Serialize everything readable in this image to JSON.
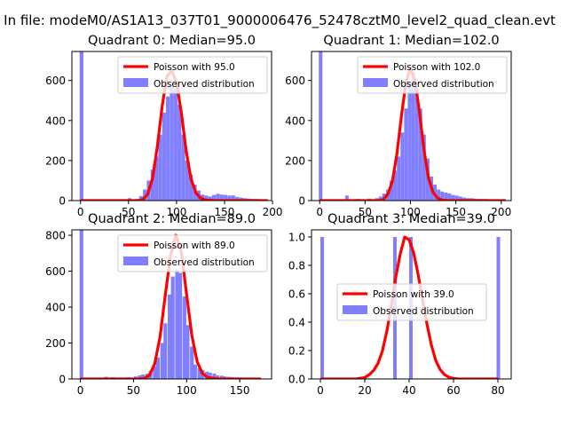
{
  "figure": {
    "suptitle": "In file: modeM0/AS1A13_037T01_9000006476_52478cztM0_level2_quad_clean.evt"
  },
  "colors": {
    "observed": "#7f7fff",
    "poisson": "#ff0000",
    "axis": "#000000"
  },
  "chart_data": [
    {
      "type": "bar",
      "title": "Quadrant 0: Median=95.0",
      "xlim": [
        -9,
        199
      ],
      "ylim": [
        0,
        745
      ],
      "xticks": [
        0,
        50,
        100,
        150,
        200
      ],
      "yticks": [
        0,
        200,
        400,
        600
      ],
      "legend_position": "top-right",
      "bin_width": 3.9,
      "series": [
        {
          "name": "Observed distribution",
          "type": "bar",
          "points": [
            [
              1,
              745
            ],
            [
              51,
              12
            ],
            [
              59,
              8
            ],
            [
              63,
              22
            ],
            [
              67,
              55
            ],
            [
              71,
              100
            ],
            [
              75,
              155
            ],
            [
              79,
              220
            ],
            [
              83,
              330
            ],
            [
              87,
              440
            ],
            [
              91,
              520
            ],
            [
              95,
              600
            ],
            [
              99,
              560
            ],
            [
              103,
              480
            ],
            [
              107,
              330
            ],
            [
              111,
              200
            ],
            [
              115,
              130
            ],
            [
              119,
              80
            ],
            [
              123,
              50
            ],
            [
              127,
              30
            ],
            [
              131,
              25
            ],
            [
              135,
              20
            ],
            [
              139,
              28
            ],
            [
              143,
              34
            ],
            [
              147,
              30
            ],
            [
              151,
              28
            ],
            [
              155,
              25
            ],
            [
              159,
              26
            ],
            [
              163,
              18
            ],
            [
              167,
              15
            ],
            [
              171,
              12
            ],
            [
              175,
              10
            ],
            [
              179,
              8
            ],
            [
              183,
              8
            ]
          ]
        },
        {
          "name": "Poisson with 95.0",
          "type": "line",
          "x": [
            0,
            55,
            60,
            65,
            70,
            75,
            80,
            85,
            90,
            95,
            100,
            105,
            110,
            115,
            120,
            125,
            130,
            140,
            150,
            160,
            170,
            180,
            190,
            195
          ],
          "y": [
            0,
            0,
            0,
            6,
            32,
            110,
            270,
            470,
            620,
            650,
            590,
            440,
            250,
            110,
            40,
            12,
            3,
            0,
            0,
            0,
            0,
            0,
            0,
            0
          ]
        }
      ]
    },
    {
      "type": "bar",
      "title": "Quadrant 1: Median=102.0",
      "xlim": [
        -9,
        211
      ],
      "ylim": [
        0,
        745
      ],
      "xticks": [
        0,
        50,
        100,
        150,
        200
      ],
      "yticks": [
        0,
        200,
        400,
        600
      ],
      "legend_position": "top-right",
      "bin_width": 3.9,
      "series": [
        {
          "name": "Observed distribution",
          "type": "bar",
          "points": [
            [
              1,
              745
            ],
            [
              30,
              25
            ],
            [
              42,
              8
            ],
            [
              55,
              10
            ],
            [
              63,
              12
            ],
            [
              67,
              20
            ],
            [
              71,
              35
            ],
            [
              75,
              55
            ],
            [
              79,
              100
            ],
            [
              83,
              150
            ],
            [
              87,
              220
            ],
            [
              91,
              340
            ],
            [
              95,
              460
            ],
            [
              99,
              590
            ],
            [
              103,
              640
            ],
            [
              107,
              560
            ],
            [
              111,
              460
            ],
            [
              115,
              330
            ],
            [
              119,
              210
            ],
            [
              123,
              120
            ],
            [
              127,
              80
            ],
            [
              131,
              55
            ],
            [
              135,
              45
            ],
            [
              139,
              40
            ],
            [
              143,
              35
            ],
            [
              147,
              28
            ],
            [
              151,
              25
            ],
            [
              155,
              20
            ],
            [
              159,
              15
            ],
            [
              163,
              12
            ],
            [
              167,
              12
            ],
            [
              171,
              10
            ],
            [
              175,
              8
            ],
            [
              179,
              8
            ],
            [
              183,
              8
            ]
          ]
        },
        {
          "name": "Poisson with 102.0",
          "type": "line",
          "x": [
            0,
            60,
            65,
            70,
            75,
            80,
            85,
            90,
            95,
            100,
            105,
            110,
            115,
            120,
            125,
            130,
            135,
            140,
            150,
            160,
            180,
            200,
            205
          ],
          "y": [
            0,
            0,
            0,
            5,
            30,
            95,
            230,
            420,
            590,
            660,
            600,
            440,
            250,
            110,
            40,
            12,
            3,
            0,
            0,
            0,
            0,
            0,
            0
          ]
        }
      ]
    },
    {
      "type": "bar",
      "title": "Quadrant 2: Median=89.0",
      "xlim": [
        -8,
        180
      ],
      "ylim": [
        0,
        830
      ],
      "xticks": [
        0,
        50,
        100,
        150
      ],
      "yticks": [
        0,
        200,
        400,
        600,
        800
      ],
      "legend_position": "top-right",
      "bin_width": 3.5,
      "series": [
        {
          "name": "Observed distribution",
          "type": "bar",
          "points": [
            [
              1,
              830
            ],
            [
              24,
              12
            ],
            [
              31,
              10
            ],
            [
              38,
              8
            ],
            [
              45,
              10
            ],
            [
              52,
              14
            ],
            [
              56,
              20
            ],
            [
              59,
              25
            ],
            [
              63,
              30
            ],
            [
              66,
              45
            ],
            [
              70,
              70
            ],
            [
              73,
              120
            ],
            [
              77,
              200
            ],
            [
              80,
              310
            ],
            [
              84,
              470
            ],
            [
              87,
              570
            ],
            [
              91,
              610
            ],
            [
              94,
              590
            ],
            [
              98,
              460
            ],
            [
              101,
              300
            ],
            [
              105,
              180
            ],
            [
              108,
              80
            ],
            [
              112,
              60
            ],
            [
              115,
              50
            ],
            [
              119,
              40
            ],
            [
              122,
              35
            ],
            [
              126,
              30
            ],
            [
              129,
              20
            ],
            [
              133,
              18
            ],
            [
              136,
              14
            ],
            [
              140,
              12
            ],
            [
              143,
              10
            ],
            [
              147,
              8
            ],
            [
              150,
              8
            ]
          ]
        },
        {
          "name": "Poisson with 89.0",
          "type": "line",
          "x": [
            0,
            55,
            60,
            65,
            70,
            75,
            80,
            85,
            90,
            95,
            100,
            105,
            110,
            115,
            120,
            130,
            140,
            150,
            160,
            170
          ],
          "y": [
            0,
            0,
            3,
            20,
            85,
            235,
            470,
            690,
            800,
            710,
            470,
            240,
            95,
            30,
            8,
            0,
            0,
            0,
            0,
            0
          ]
        }
      ]
    },
    {
      "type": "bar",
      "title": "Quadrant 3: Median=39.0",
      "xlim": [
        -4,
        86
      ],
      "ylim": [
        0,
        1.05
      ],
      "xticks": [
        0,
        20,
        40,
        60,
        80
      ],
      "yticks": [
        0.0,
        0.2,
        0.4,
        0.6,
        0.8,
        1.0
      ],
      "legend_position": "center-right",
      "bin_width": 1.6,
      "series": [
        {
          "name": "Observed distribution",
          "type": "bar",
          "points": [
            [
              0.8,
              1.0
            ],
            [
              33.6,
              1.0
            ],
            [
              40.8,
              1.0
            ],
            [
              80.2,
              1.0
            ]
          ]
        },
        {
          "name": "Poisson with 39.0",
          "type": "line",
          "x": [
            0,
            16,
            18,
            20,
            22,
            24,
            26,
            28,
            30,
            32,
            34,
            36,
            38,
            40,
            42,
            44,
            46,
            48,
            50,
            52,
            54,
            56,
            58,
            60,
            62,
            64,
            66,
            68,
            70,
            72,
            74,
            76,
            78,
            80
          ],
          "y": [
            0,
            0,
            0.005,
            0.01,
            0.03,
            0.06,
            0.11,
            0.2,
            0.34,
            0.52,
            0.72,
            0.88,
            1.0,
            0.98,
            0.89,
            0.74,
            0.56,
            0.39,
            0.24,
            0.13,
            0.065,
            0.03,
            0.012,
            0.004,
            0.001,
            0,
            0,
            0,
            0,
            0,
            0,
            0,
            0,
            0
          ]
        }
      ]
    }
  ]
}
